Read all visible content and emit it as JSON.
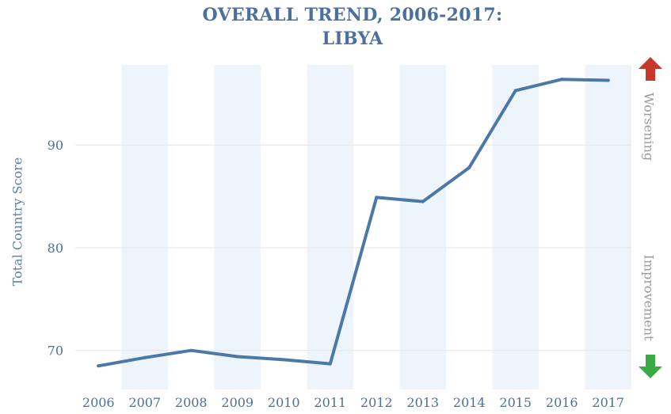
{
  "title_line1": "OVERALL TREND, 2006-2017:",
  "title_line2": "LIBYA",
  "side_labels": {
    "worsening": "Worsening",
    "improvement": "Improvement"
  },
  "colors": {
    "line": "#4c78a8",
    "band": "#eef4fb",
    "grid": "#e6e6e6",
    "tick": "#4c6f9e",
    "arrow_up": "#c8382a",
    "arrow_down": "#3aaa45"
  },
  "chart_data": {
    "type": "line",
    "title": "OVERALL TREND, 2006-2017: LIBYA",
    "ylabel": "Total Country Score",
    "xlabel": "",
    "x": [
      "2006",
      "2007",
      "2008",
      "2009",
      "2010",
      "2011",
      "2012",
      "2013",
      "2014",
      "2015",
      "2016",
      "2017"
    ],
    "values": [
      68.5,
      69.3,
      70.0,
      69.4,
      69.1,
      68.7,
      84.9,
      84.5,
      87.8,
      95.3,
      96.4,
      96.3
    ],
    "ylim": [
      66.2,
      97.8
    ],
    "yticks": [
      70,
      80,
      90
    ],
    "grid": true,
    "alternating_bands": true
  }
}
